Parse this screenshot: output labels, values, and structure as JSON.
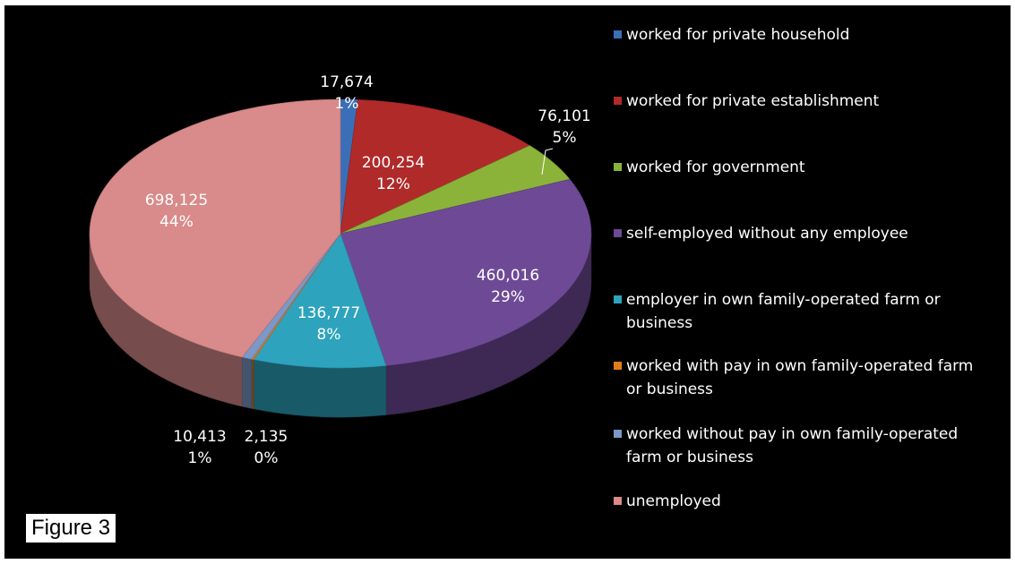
{
  "figure_label": "Figure 3",
  "chart_data": {
    "type": "pie",
    "slices": [
      {
        "category": "worked for private household",
        "value": 17674,
        "value_label": "17,674",
        "percent_label": "1%",
        "color": "#3a6fb8"
      },
      {
        "category": "worked for private establishment",
        "value": 200254,
        "value_label": "200,254",
        "percent_label": "12%",
        "color": "#b02a2a"
      },
      {
        "category": "worked for government",
        "value": 76101,
        "value_label": "76,101",
        "percent_label": "5%",
        "color": "#8bb33a"
      },
      {
        "category": "self-employed without any employee",
        "value": 460016,
        "value_label": "460,016",
        "percent_label": "29%",
        "color": "#6e4a96"
      },
      {
        "category": "employer in own family-operated  farm or business",
        "value": 136777,
        "value_label": "136,777",
        "percent_label": "8%",
        "color": "#2ea3bd"
      },
      {
        "category": "worked with pay in own family-operated farm or business",
        "value": 2135,
        "value_label": "2,135",
        "percent_label": "0%",
        "color": "#e07b1e"
      },
      {
        "category": "worked without  pay in own family-operated farm or business",
        "value": 10413,
        "value_label": "10,413",
        "percent_label": "1%",
        "color": "#7b98c8"
      },
      {
        "category": "unemployed",
        "value": 698125,
        "value_label": "698,125",
        "percent_label": "44%",
        "color": "#d98a8a"
      }
    ]
  }
}
